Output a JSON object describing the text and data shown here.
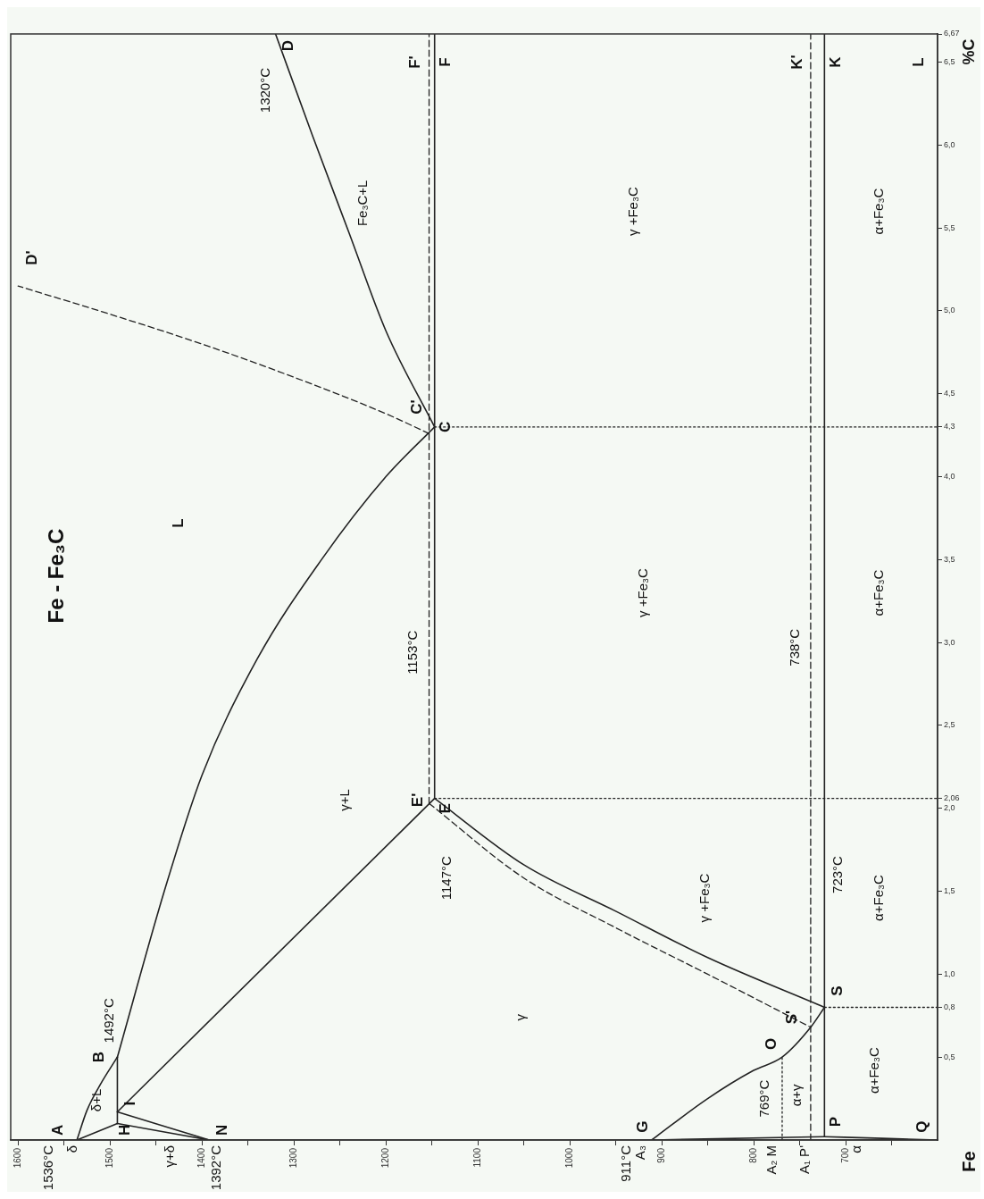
{
  "chart_data": {
    "type": "line",
    "title": "Fe - Fe₃C",
    "ylabel": "%C",
    "marker": "none",
    "grid": false,
    "legend": false,
    "xlim": [
      1608,
      600
    ],
    "xticks": [
      1600,
      {
        "value": 1550,
        "label": null
      },
      1500,
      {
        "value": 1450,
        "label": null
      },
      1400,
      {
        "value": 1350,
        "label": null
      },
      1300,
      {
        "value": 1250,
        "label": null
      },
      1200,
      {
        "value": 1150,
        "label": null
      },
      1100,
      {
        "value": 1050,
        "label": null
      },
      1000,
      {
        "value": 950,
        "label": null
      },
      900,
      {
        "value": 850,
        "label": null
      },
      800,
      {
        "value": 750,
        "label": null
      },
      700,
      {
        "value": 650,
        "label": null
      }
    ],
    "ylim": [
      0,
      6.67
    ],
    "yticks": [
      {
        "value": 0.5,
        "label": "0,5"
      },
      {
        "value": 0.8,
        "label": "0,8"
      },
      {
        "value": 1,
        "label": "1,0"
      },
      {
        "value": 1.5,
        "label": "1,5"
      },
      {
        "value": 2,
        "label": "2,0"
      },
      {
        "value": 2.06,
        "label": "2,06"
      },
      {
        "value": 2.5,
        "label": "2,5"
      },
      {
        "value": 3,
        "label": "3,0"
      },
      {
        "value": 3.5,
        "label": "3,5"
      },
      {
        "value": 4,
        "label": "4,0"
      },
      {
        "value": 4.3,
        "label": "4,3"
      },
      {
        "value": 4.5,
        "label": "4,5"
      },
      {
        "value": 5,
        "label": "5,0"
      },
      {
        "value": 5.5,
        "label": "5,5"
      },
      {
        "value": 6,
        "label": "6,0"
      },
      {
        "value": 6.5,
        "label": "6,5"
      },
      {
        "value": 6.67,
        "label": "6,67"
      }
    ],
    "series": [
      {
        "color": "#222222",
        "line_style": "solid",
        "x": [
          1536,
          1525,
          1510,
          1492
        ],
        "values": [
          0,
          0.18,
          0.34,
          0.5
        ]
      },
      {
        "color": "#222222",
        "line_style": "solid",
        "x": [
          1492,
          1441,
          1400,
          1340,
          1270,
          1200,
          1147
        ],
        "values": [
          0.5,
          1.5,
          2.2,
          2.9,
          3.5,
          4.0,
          4.3
        ]
      },
      {
        "color": "#222222",
        "line_style": "solid",
        "x": [
          1147,
          1200,
          1240,
          1280,
          1320
        ],
        "values": [
          4.3,
          4.88,
          5.47,
          6.06,
          6.67
        ]
      },
      {
        "color": "#222222",
        "line_style": "dashed",
        "x": [
          1153,
          1200,
          1300,
          1400,
          1500,
          1600
        ],
        "values": [
          4.26,
          4.38,
          4.6,
          4.8,
          4.98,
          5.15
        ]
      },
      {
        "color": "#222222",
        "line_style": "solid",
        "x": [
          1147,
          1147
        ],
        "values": [
          2.06,
          6.67
        ]
      },
      {
        "color": "#222222",
        "line_style": "dashed",
        "x": [
          1153,
          1153
        ],
        "values": [
          2.03,
          6.67
        ]
      },
      {
        "color": "#222222",
        "line_style": "solid",
        "x": [
          1492,
          1147
        ],
        "values": [
          0.17,
          2.06
        ]
      },
      {
        "color": "#222222",
        "line_style": "solid",
        "x": [
          1536,
          1492
        ],
        "values": [
          0,
          0.1
        ]
      },
      {
        "color": "#222222",
        "line_style": "solid",
        "x": [
          1492,
          1492
        ],
        "values": [
          0.1,
          0.5
        ]
      },
      {
        "color": "#222222",
        "line_style": "solid",
        "x": [
          1492,
          1392
        ],
        "values": [
          0.1,
          0
        ]
      },
      {
        "color": "#222222",
        "line_style": "solid",
        "x": [
          1492,
          1392
        ],
        "values": [
          0.17,
          0
        ]
      },
      {
        "color": "#222222",
        "line_style": "solid",
        "x": [
          1147,
          1050,
          950,
          850,
          723
        ],
        "values": [
          2.06,
          1.66,
          1.38,
          1.1,
          0.8
        ]
      },
      {
        "color": "#222222",
        "line_style": "dashed",
        "x": [
          1153,
          1050,
          950,
          850,
          738
        ],
        "values": [
          2.03,
          1.58,
          1.28,
          1.0,
          0.68
        ]
      },
      {
        "color": "#222222",
        "line_style": "solid",
        "x": [
          911,
          850,
          800,
          769,
          738,
          723
        ],
        "values": [
          0,
          0.25,
          0.42,
          0.5,
          0.68,
          0.8
        ]
      },
      {
        "color": "#222222",
        "line_style": "dotted",
        "x": [
          769,
          769
        ],
        "values": [
          0,
          0.5
        ]
      },
      {
        "color": "#222222",
        "line_style": "solid",
        "x": [
          723,
          723
        ],
        "values": [
          0.02,
          6.67
        ]
      },
      {
        "color": "#222222",
        "line_style": "dashed",
        "x": [
          738,
          738
        ],
        "values": [
          0,
          6.67
        ]
      },
      {
        "color": "#222222",
        "line_style": "solid",
        "x": [
          911,
          723
        ],
        "values": [
          0,
          0.02
        ]
      },
      {
        "color": "#222222",
        "line_style": "solid",
        "x": [
          723,
          660,
          600
        ],
        "values": [
          0.02,
          0.01,
          0
        ]
      },
      {
        "color": "#222222",
        "line_style": "dotted",
        "x": [
          723,
          600
        ],
        "values": [
          0.8,
          0.8
        ]
      },
      {
        "color": "#222222",
        "line_style": "dotted",
        "x": [
          1147,
          600
        ],
        "values": [
          2.06,
          2.06
        ]
      },
      {
        "color": "#222222",
        "line_style": "dotted",
        "x": [
          1147,
          600
        ],
        "values": [
          4.3,
          4.3
        ]
      }
    ],
    "annotations": [
      "A",
      "B",
      "1492°C",
      "H",
      "I",
      "N",
      "δ+L",
      "G",
      "O",
      "S'",
      "S",
      "P",
      "Q",
      "E",
      "E'",
      "C",
      "C'",
      "D",
      "D'",
      "F",
      "F'",
      "K",
      "K'",
      "L",
      "L",
      "γ+L",
      "γ",
      "Fe₃C+L",
      "γ +Fe₃C",
      "α+Fe₃C",
      "γ +Fe₃C",
      "α+Fe₃C",
      "γ +Fe₃C",
      "α+Fe₃C",
      "α+Fe₃C",
      "α+γ",
      "769°C",
      "1320°C",
      "1153°C",
      "1147°C",
      "738°C",
      "723°C",
      "1536°C",
      "δ",
      "γ+δ",
      "1392°C",
      "911°C\nA₃",
      "A₂ M",
      "A₁ P'",
      "α",
      "Fe"
    ]
  }
}
